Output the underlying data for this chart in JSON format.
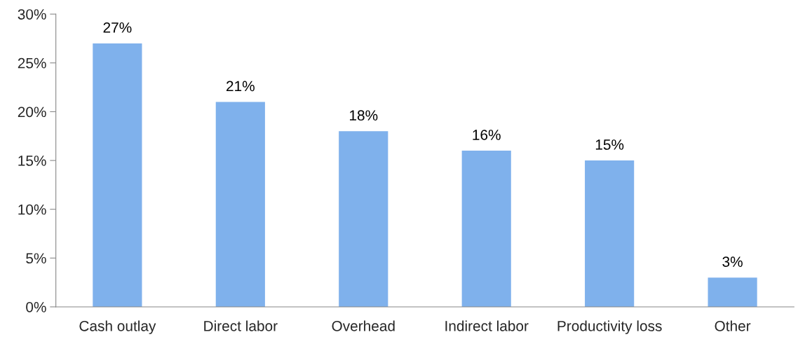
{
  "chart_data": {
    "type": "bar",
    "categories": [
      "Cash outlay",
      "Direct labor",
      "Overhead",
      "Indirect labor",
      "Productivity loss",
      "Other"
    ],
    "values": [
      27,
      21,
      18,
      16,
      15,
      3
    ],
    "value_labels": [
      "27%",
      "21%",
      "18%",
      "16%",
      "15%",
      "3%"
    ],
    "color": "#7fb1ec",
    "ylim": [
      0,
      30
    ],
    "yticks": [
      {
        "value": 0,
        "label": "0%"
      },
      {
        "value": 5,
        "label": "5%"
      },
      {
        "value": 10,
        "label": "10%"
      },
      {
        "value": 15,
        "label": "15%"
      },
      {
        "value": 20,
        "label": "20%"
      },
      {
        "value": 25,
        "label": "25%"
      },
      {
        "value": 30,
        "label": "30%"
      }
    ],
    "grid": false,
    "legend": false
  }
}
